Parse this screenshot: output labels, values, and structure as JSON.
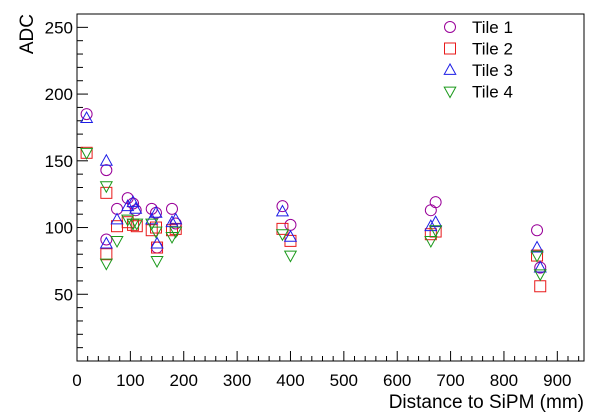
{
  "chart_data": {
    "type": "scatter",
    "xlabel": "Distance to SiPM (mm)",
    "ylabel": "ADC",
    "xlim": [
      0,
      950
    ],
    "ylim": [
      0,
      260
    ],
    "x_ticks": [
      "0",
      "100",
      "200",
      "300",
      "400",
      "500",
      "600",
      "700",
      "800",
      "900"
    ],
    "y_ticks": [
      "50",
      "100",
      "150",
      "200",
      "250"
    ],
    "legend_position": "top-right",
    "grid": false,
    "series": [
      {
        "name": "Tile 1",
        "marker": "circle",
        "color": "#990099",
        "points": [
          [
            18,
            185
          ],
          [
            55,
            91
          ],
          [
            55,
            143
          ],
          [
            75,
            114
          ],
          [
            95,
            122
          ],
          [
            105,
            118
          ],
          [
            110,
            113
          ],
          [
            140,
            114
          ],
          [
            148,
            111
          ],
          [
            150,
            85
          ],
          [
            178,
            114
          ],
          [
            185,
            103
          ],
          [
            385,
            116
          ],
          [
            400,
            102
          ],
          [
            663,
            113
          ],
          [
            672,
            119
          ],
          [
            862,
            98
          ],
          [
            868,
            70
          ]
        ]
      },
      {
        "name": "Tile 2",
        "marker": "square",
        "color": "#e8191a",
        "points": [
          [
            18,
            156
          ],
          [
            55,
            80
          ],
          [
            55,
            126
          ],
          [
            75,
            101
          ],
          [
            95,
            104
          ],
          [
            105,
            102
          ],
          [
            112,
            101
          ],
          [
            140,
            98
          ],
          [
            148,
            100
          ],
          [
            150,
            85
          ],
          [
            178,
            98
          ],
          [
            185,
            99
          ],
          [
            385,
            99
          ],
          [
            400,
            90
          ],
          [
            663,
            95
          ],
          [
            672,
            97
          ],
          [
            862,
            79
          ],
          [
            868,
            56
          ]
        ]
      },
      {
        "name": "Tile 3",
        "marker": "triangle-up",
        "color": "#1e1ee6",
        "points": [
          [
            18,
            182
          ],
          [
            55,
            88
          ],
          [
            55,
            150
          ],
          [
            75,
            106
          ],
          [
            95,
            116
          ],
          [
            105,
            119
          ],
          [
            110,
            114
          ],
          [
            140,
            106
          ],
          [
            148,
            111
          ],
          [
            150,
            88
          ],
          [
            178,
            104
          ],
          [
            185,
            106
          ],
          [
            385,
            112
          ],
          [
            400,
            93
          ],
          [
            663,
            101
          ],
          [
            672,
            104
          ],
          [
            862,
            85
          ],
          [
            868,
            70
          ]
        ]
      },
      {
        "name": "Tile 4",
        "marker": "triangle-down",
        "color": "#1a991a",
        "points": [
          [
            18,
            156
          ],
          [
            55,
            73
          ],
          [
            55,
            131
          ],
          [
            75,
            90
          ],
          [
            95,
            106
          ],
          [
            105,
            103
          ],
          [
            112,
            103
          ],
          [
            140,
            103
          ],
          [
            148,
            97
          ],
          [
            150,
            75
          ],
          [
            178,
            93
          ],
          [
            185,
            97
          ],
          [
            385,
            95
          ],
          [
            400,
            79
          ],
          [
            663,
            90
          ],
          [
            672,
            98
          ],
          [
            862,
            79
          ],
          [
            868,
            65
          ]
        ]
      }
    ]
  }
}
